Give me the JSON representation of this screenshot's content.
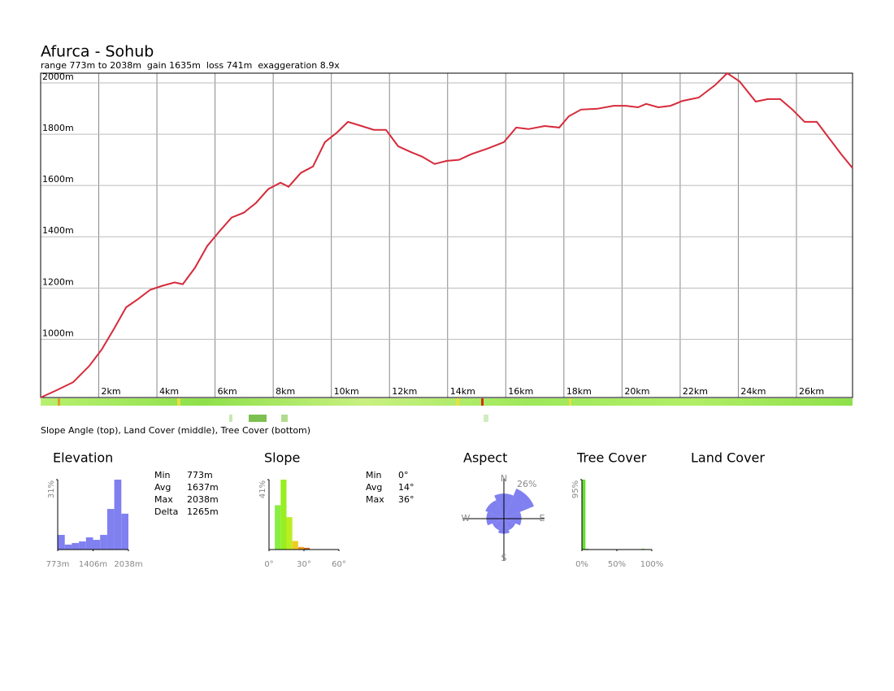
{
  "chart_data": [
    {
      "type": "line",
      "title": "Afurca - Sohub",
      "subtitle": "range 773m to 2038m  gain 1635m  loss 741m  exaggeration 8.9x",
      "caption": "Slope Angle (top), Land Cover (middle), Tree Cover (bottom)",
      "color": "#d62a3a",
      "x": [
        0,
        0.56,
        1.12,
        1.68,
        2.1,
        2.52,
        2.94,
        3.35,
        3.77,
        4.19,
        4.61,
        4.89,
        5.31,
        5.73,
        6.15,
        6.57,
        6.99,
        7.41,
        7.83,
        8.25,
        8.53,
        8.95,
        9.37,
        9.78,
        10.2,
        10.57,
        11.04,
        11.46,
        11.88,
        12.3,
        12.72,
        13.13,
        13.55,
        13.97,
        14.39,
        14.81,
        15.38,
        15.94,
        16.36,
        16.78,
        17.34,
        17.84,
        18.17,
        18.59,
        19.15,
        19.71,
        20.13,
        20.55,
        20.83,
        21.25,
        21.67,
        22.08,
        22.64,
        23.2,
        23.62,
        24.04,
        24.6,
        25.02,
        25.44,
        25.86,
        26.28,
        26.7,
        27.12,
        27.54,
        27.93
      ],
      "values": [
        773,
        802,
        833,
        897,
        960,
        1040,
        1125,
        1157,
        1193,
        1209,
        1222,
        1215,
        1279,
        1364,
        1421,
        1475,
        1494,
        1532,
        1586,
        1611,
        1595,
        1649,
        1674,
        1769,
        1807,
        1848,
        1832,
        1817,
        1817,
        1753,
        1731,
        1712,
        1684,
        1696,
        1700,
        1722,
        1744,
        1769,
        1826,
        1820,
        1832,
        1826,
        1870,
        1896,
        1899,
        1911,
        1911,
        1905,
        1918,
        1905,
        1911,
        1930,
        1943,
        1991,
        2038,
        2006,
        1927,
        1937,
        1937,
        1896,
        1848,
        1848,
        1785,
        1722,
        1668
      ],
      "xlim": [
        0,
        27.93
      ],
      "ylim": [
        773,
        2038
      ],
      "xticks": [
        {
          "value": 2,
          "label": "2km"
        },
        {
          "value": 4,
          "label": "4km"
        },
        {
          "value": 6,
          "label": "6km"
        },
        {
          "value": 8,
          "label": "8km"
        },
        {
          "value": 10,
          "label": "10km"
        },
        {
          "value": 12,
          "label": "12km"
        },
        {
          "value": 14,
          "label": "14km"
        },
        {
          "value": 16,
          "label": "16km"
        },
        {
          "value": 18,
          "label": "18km"
        },
        {
          "value": 20,
          "label": "20km"
        },
        {
          "value": 22,
          "label": "22km"
        },
        {
          "value": 24,
          "label": "24km"
        },
        {
          "value": 26,
          "label": "26km"
        }
      ],
      "yticks": [
        {
          "value": 1000,
          "label": "1000m"
        },
        {
          "value": 1200,
          "label": "1200m"
        },
        {
          "value": 1400,
          "label": "1400m"
        },
        {
          "value": 1600,
          "label": "1600m"
        },
        {
          "value": 1800,
          "label": "1800m"
        },
        {
          "value": 2000,
          "label": "2000m"
        }
      ],
      "grid": true
    },
    {
      "type": "histogram",
      "title": "Elevation",
      "color": "#8080f0",
      "bins": [
        773,
        899.5,
        1026,
        1152.5,
        1279,
        1405.5,
        1532,
        1658.5,
        1785,
        1911.5,
        2038
      ],
      "values": [
        6.5,
        2.2,
        2.9,
        3.6,
        5.4,
        4.3,
        6.5,
        18,
        31,
        15.9
      ],
      "xlim": [
        773,
        2038
      ],
      "ylim": [
        0,
        31
      ],
      "xticks": [
        {
          "value": 773,
          "label": "773m"
        },
        {
          "value": 1406,
          "label": "1406m"
        },
        {
          "value": 2038,
          "label": "2038m"
        }
      ],
      "yticks": [
        {
          "value": 31,
          "label": "31%"
        }
      ],
      "stats": [
        [
          "Min",
          "773m"
        ],
        [
          "Avg",
          "1637m"
        ],
        [
          "Max",
          "2038m"
        ],
        [
          "Delta",
          "1265m"
        ]
      ]
    },
    {
      "type": "histogram",
      "title": "Slope",
      "colors": [
        "#88ee44",
        "#88ee44",
        "#99ee22",
        "#bbee22",
        "#eecc22",
        "#ee9922",
        "#cc6622",
        "#cc4422"
      ],
      "bins": [
        0,
        5,
        10,
        15,
        20,
        25,
        30,
        35,
        40
      ],
      "values": [
        0,
        26,
        41,
        19,
        5,
        1.5,
        1,
        0
      ],
      "xlim": [
        0,
        60
      ],
      "ylim": [
        0,
        41
      ],
      "xticks": [
        {
          "value": 0,
          "label": "0°"
        },
        {
          "value": 30,
          "label": "30°"
        },
        {
          "value": 60,
          "label": "60°"
        }
      ],
      "yticks": [
        {
          "value": 41,
          "label": "41%"
        }
      ],
      "stats": [
        [
          "Min",
          "0°"
        ],
        [
          "Avg",
          "14°"
        ],
        [
          "Max",
          "36°"
        ]
      ]
    },
    {
      "type": "rose",
      "title": "Aspect",
      "color": "#8080f0",
      "categories": [
        "N",
        null,
        "E",
        null,
        "S",
        null,
        "W",
        null
      ],
      "values": [
        20,
        26,
        14,
        10,
        12,
        10,
        14,
        16
      ],
      "rlim": [
        0,
        26
      ],
      "rticks": [
        {
          "value": 26,
          "label": "26%"
        }
      ]
    },
    {
      "type": "histogram",
      "title": "Tree Cover",
      "color": "#66dd33",
      "bins": [
        0,
        5,
        10,
        15,
        20,
        25,
        30,
        35,
        40,
        45,
        50,
        55,
        60,
        65,
        70,
        75,
        80,
        85,
        90,
        95,
        100
      ],
      "values": [
        95,
        1,
        0,
        0,
        0,
        0,
        0,
        0,
        0,
        0,
        0,
        0,
        0,
        0,
        0,
        0,
        0,
        1,
        0,
        0
      ],
      "xlim": [
        0,
        100
      ],
      "ylim": [
        0,
        95
      ],
      "xticks": [
        {
          "value": 0,
          "label": "0%"
        },
        {
          "value": 50,
          "label": "50%"
        },
        {
          "value": 100,
          "label": "100%"
        }
      ],
      "yticks": [
        {
          "value": 95,
          "label": "95%"
        }
      ]
    }
  ],
  "land_cover": {
    "title": "Land Cover"
  }
}
